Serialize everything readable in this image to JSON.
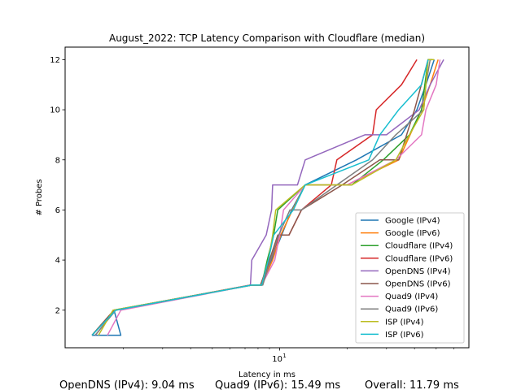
{
  "chart_data": {
    "type": "line",
    "title": "August_2022: TCP Latency Comparison with Cloudflare (median)",
    "xlabel": "Latency in ms",
    "ylabel": "# Probes",
    "xscale": "log",
    "xlim": [
      1.1,
      70
    ],
    "ylim": [
      0.5,
      12.5
    ],
    "yticks": [
      2,
      4,
      6,
      8,
      10,
      12
    ],
    "xticks": [
      {
        "value": 10,
        "label": "10^1",
        "base": "10",
        "exp": "1"
      }
    ],
    "grid": false,
    "legend_position": "lower-right",
    "series": [
      {
        "name": "Google (IPv4)",
        "color": "#1f77b4",
        "points": [
          [
            1.45,
            1
          ],
          [
            1.95,
            1
          ],
          [
            1.82,
            2
          ],
          [
            7.5,
            3
          ],
          [
            8.3,
            3
          ],
          [
            9.2,
            4
          ],
          [
            10.2,
            5
          ],
          [
            11.3,
            6
          ],
          [
            13,
            7
          ],
          [
            22,
            8
          ],
          [
            35,
            9
          ],
          [
            41,
            10
          ],
          [
            45,
            11
          ],
          [
            49,
            12
          ]
        ]
      },
      {
        "name": "Google (IPv6)",
        "color": "#ff7f0e",
        "points": [
          [
            1.45,
            1
          ],
          [
            1.85,
            2
          ],
          [
            7.4,
            3
          ],
          [
            8.3,
            3
          ],
          [
            9.3,
            4
          ],
          [
            10.1,
            5
          ],
          [
            11.4,
            6
          ],
          [
            13,
            7
          ],
          [
            20,
            7
          ],
          [
            34,
            8
          ],
          [
            43,
            10
          ],
          [
            47,
            11
          ],
          [
            51,
            12
          ]
        ]
      },
      {
        "name": "Cloudflare (IPv4)",
        "color": "#2ca02c",
        "points": [
          [
            1.45,
            1
          ],
          [
            1.82,
            2
          ],
          [
            7.5,
            3
          ],
          [
            8.3,
            3
          ],
          [
            8.8,
            4
          ],
          [
            9.4,
            5
          ],
          [
            9.8,
            6
          ],
          [
            13,
            7
          ],
          [
            21,
            7
          ],
          [
            29,
            8
          ],
          [
            38,
            9
          ],
          [
            43,
            10
          ],
          [
            46,
            12
          ],
          [
            48,
            12
          ]
        ]
      },
      {
        "name": "Cloudflare (IPv6)",
        "color": "#d62728",
        "points": [
          [
            1.45,
            1
          ],
          [
            1.82,
            2
          ],
          [
            7.4,
            3
          ],
          [
            8.3,
            3
          ],
          [
            9.1,
            4
          ],
          [
            10,
            5
          ],
          [
            11,
            5
          ],
          [
            12.5,
            6
          ],
          [
            17,
            7
          ],
          [
            18,
            8
          ],
          [
            26,
            9
          ],
          [
            27,
            10
          ],
          [
            35,
            11
          ],
          [
            41,
            12
          ]
        ]
      },
      {
        "name": "OpenDNS (IPv4)",
        "color": "#9467bd",
        "points": [
          [
            1.5,
            1
          ],
          [
            1.85,
            2
          ],
          [
            7.4,
            3
          ],
          [
            7.5,
            4
          ],
          [
            8.7,
            5
          ],
          [
            9.2,
            6
          ],
          [
            9.3,
            7
          ],
          [
            12,
            7
          ],
          [
            13,
            8
          ],
          [
            24,
            9
          ],
          [
            30,
            9
          ],
          [
            42,
            10
          ],
          [
            47,
            11
          ],
          [
            54,
            12
          ]
        ]
      },
      {
        "name": "OpenDNS (IPv6)",
        "color": "#8c564b",
        "points": [
          [
            1.45,
            1
          ],
          [
            1.82,
            2
          ],
          [
            7.5,
            3
          ],
          [
            8.2,
            3
          ],
          [
            9.0,
            4
          ],
          [
            9.8,
            5
          ],
          [
            11.0,
            5
          ],
          [
            12.5,
            6
          ],
          [
            19,
            7
          ],
          [
            28,
            8
          ],
          [
            34,
            8
          ],
          [
            40,
            10
          ],
          [
            46,
            12
          ]
        ]
      },
      {
        "name": "Quad9 (IPv4)",
        "color": "#e377c2",
        "points": [
          [
            1.7,
            1
          ],
          [
            1.95,
            2
          ],
          [
            7.5,
            3
          ],
          [
            8.3,
            3
          ],
          [
            9.5,
            4
          ],
          [
            10,
            5
          ],
          [
            10.4,
            6
          ],
          [
            13,
            7
          ],
          [
            20,
            7
          ],
          [
            33,
            8
          ],
          [
            43,
            9
          ],
          [
            45,
            10
          ],
          [
            50,
            11
          ],
          [
            52,
            12
          ]
        ]
      },
      {
        "name": "Quad9 (IPv6)",
        "color": "#7f7f7f",
        "points": [
          [
            1.5,
            1
          ],
          [
            1.85,
            2
          ],
          [
            7.5,
            3
          ],
          [
            8.4,
            3
          ],
          [
            9.1,
            4
          ],
          [
            9.9,
            5
          ],
          [
            11.1,
            6
          ],
          [
            12.5,
            6
          ],
          [
            18,
            7
          ],
          [
            26,
            8
          ],
          [
            33,
            9
          ],
          [
            44,
            10
          ],
          [
            45,
            11
          ],
          [
            47,
            12
          ]
        ]
      },
      {
        "name": "ISP (IPv4)",
        "color": "#bcbd22",
        "points": [
          [
            1.55,
            1
          ],
          [
            1.8,
            2
          ],
          [
            7.5,
            3
          ],
          [
            8.3,
            3
          ],
          [
            8.9,
            4
          ],
          [
            9.3,
            5
          ],
          [
            9.6,
            6
          ],
          [
            13,
            7
          ],
          [
            21,
            7
          ],
          [
            33,
            8
          ],
          [
            38,
            9
          ],
          [
            44,
            10
          ],
          [
            46,
            12
          ],
          [
            49,
            12
          ]
        ]
      },
      {
        "name": "ISP (IPv6)",
        "color": "#17becf",
        "points": [
          [
            1.45,
            1
          ],
          [
            1.85,
            2
          ],
          [
            7.5,
            3
          ],
          [
            8.3,
            3
          ],
          [
            8.9,
            4
          ],
          [
            9.4,
            5
          ],
          [
            11.5,
            6
          ],
          [
            13,
            7
          ],
          [
            25,
            8
          ],
          [
            28,
            9
          ],
          [
            34,
            10
          ],
          [
            43,
            11
          ],
          [
            46,
            12
          ]
        ]
      }
    ]
  },
  "footer": {
    "opendns": "OpenDNS (IPv4): 9.04 ms",
    "quad9": "Quad9 (IPv6): 15.49 ms",
    "overall": "Overall: 11.79 ms"
  }
}
